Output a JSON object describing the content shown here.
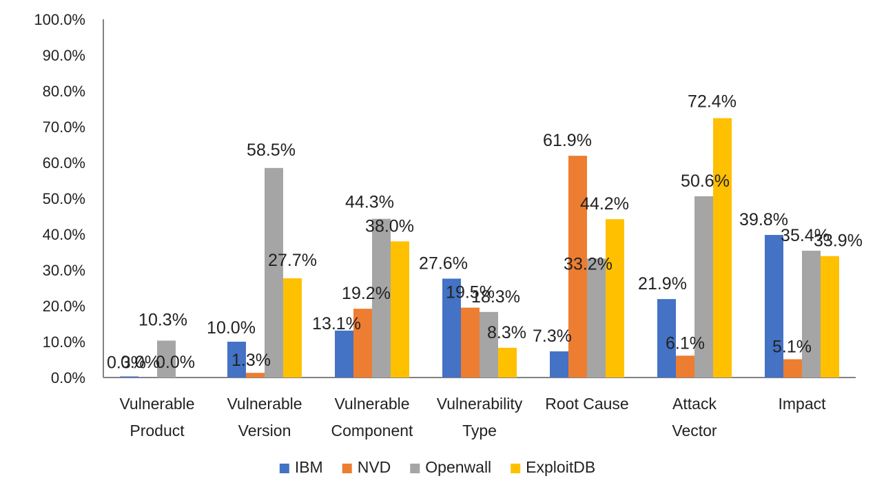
{
  "chart_data": {
    "type": "bar",
    "title": "",
    "xlabel": "",
    "ylabel": "",
    "ylim": [
      0,
      100
    ],
    "y_ticks": [
      "0.0%",
      "10.0%",
      "20.0%",
      "30.0%",
      "40.0%",
      "50.0%",
      "60.0%",
      "70.0%",
      "80.0%",
      "90.0%",
      "100.0%"
    ],
    "y_tick_values": [
      0,
      10,
      20,
      30,
      40,
      50,
      60,
      70,
      80,
      90,
      100
    ],
    "grid": false,
    "legend_position": "bottom",
    "categories": [
      [
        "Vulnerable",
        "Product"
      ],
      [
        "Vulnerable",
        "Version"
      ],
      [
        "Vulnerable",
        "Component"
      ],
      [
        "Vulnerability",
        "Type"
      ],
      [
        "Root Cause"
      ],
      [
        "Attack",
        "Vector"
      ],
      [
        "Impact"
      ]
    ],
    "series": [
      {
        "name": "IBM",
        "color": "#4472C4",
        "values": [
          0.3,
          10.0,
          13.1,
          27.6,
          7.3,
          21.9,
          39.8
        ],
        "labels": [
          "0.3%",
          "10.0%",
          "13.1%",
          "27.6%",
          "7.3%",
          "21.9%",
          "39.8%"
        ]
      },
      {
        "name": "NVD",
        "color": "#ED7D31",
        "values": [
          0.0,
          1.3,
          19.2,
          19.5,
          61.9,
          6.1,
          5.1
        ],
        "labels": [
          "0.0%",
          "1.3%",
          "19.2%",
          "19.5%",
          "61.9%",
          "6.1%",
          "5.1%"
        ]
      },
      {
        "name": "Openwall",
        "color": "#A5A5A5",
        "values": [
          10.3,
          58.5,
          44.3,
          18.3,
          33.2,
          50.6,
          35.4
        ],
        "labels": [
          "10.3%",
          "58.5%",
          "44.3%",
          "18.3%",
          "33.2%",
          "50.6%",
          "35.4%"
        ]
      },
      {
        "name": "ExploitDB",
        "color": "#FFC000",
        "values": [
          0.0,
          27.7,
          38.0,
          8.3,
          44.2,
          72.4,
          33.9
        ],
        "labels": [
          "0.0%",
          "27.7%",
          "38.0%",
          "8.3%",
          "44.2%",
          "72.4%",
          "33.9%"
        ]
      }
    ]
  }
}
